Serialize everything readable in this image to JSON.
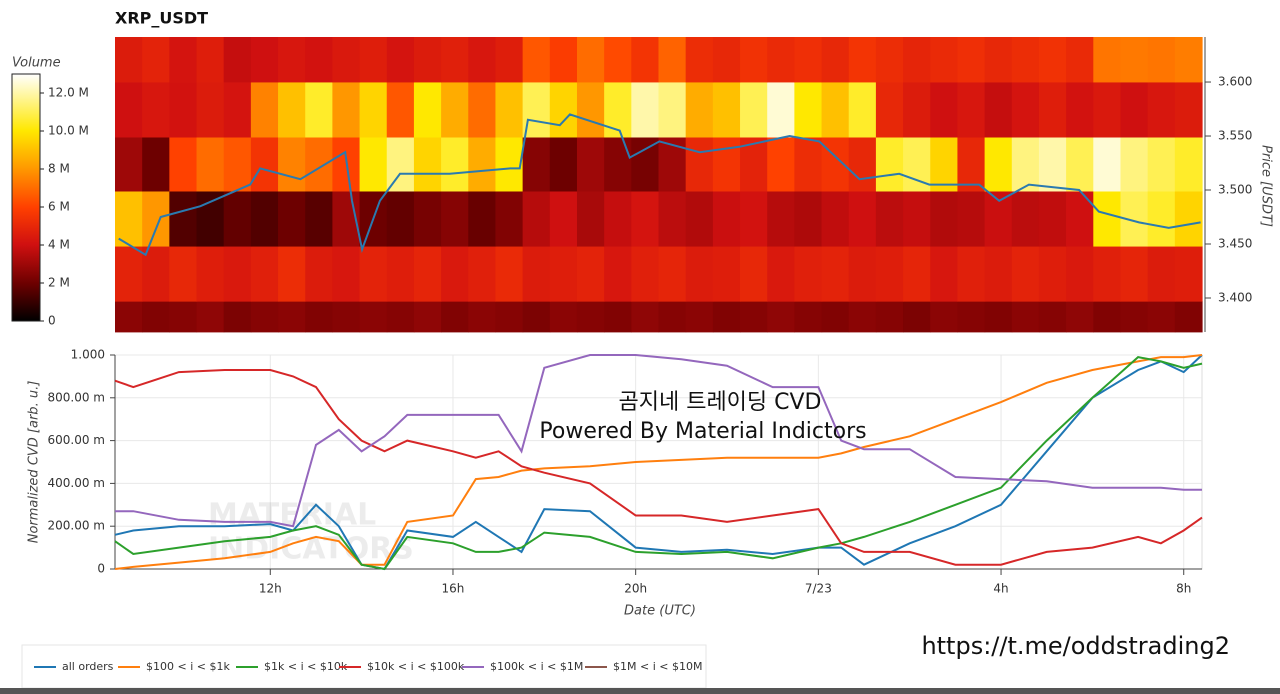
{
  "chart_data": [
    {
      "type": "heatmap",
      "title": "XRP_USDT",
      "colorbar_label": "Volume",
      "y_label": "Price [USDT]",
      "xlim": [
        8.6,
        32.4
      ],
      "ylim": [
        3.3685,
        3.6417
      ],
      "yticks": [
        {
          "value": 3.4,
          "label": "3.400"
        },
        {
          "value": 3.45,
          "label": "3.450"
        },
        {
          "value": 3.5,
          "label": "3.500"
        },
        {
          "value": 3.55,
          "label": "3.550"
        },
        {
          "value": 3.6,
          "label": "3.600"
        }
      ],
      "y_bins": [
        3.3685,
        3.397,
        3.448,
        3.499,
        3.549,
        3.6,
        3.6417
      ],
      "zlim": [
        0,
        13
      ],
      "zticks": [
        0,
        {
          "value": 2,
          "label": "2 M"
        },
        {
          "value": 4,
          "label": "4 M"
        },
        {
          "value": 6,
          "label": "6 M"
        },
        {
          "value": 8,
          "label": "8 M"
        },
        {
          "value": 10,
          "label": "10.0 M"
        },
        {
          "value": 12,
          "label": "12.0 M"
        }
      ],
      "z": [
        [
          2.6,
          2.4,
          2.5,
          2.7,
          2.3,
          2.5,
          2.6,
          2.4,
          2.5,
          2.6,
          2.5,
          2.7,
          2.4,
          2.6,
          2.5,
          2.3,
          2.6,
          2.5,
          2.4,
          2.7,
          2.5,
          2.6,
          2.4,
          2.5,
          2.7,
          2.5,
          2.4,
          2.6,
          2.5,
          2.3,
          2.6,
          2.5,
          2.4,
          2.6,
          2.5,
          2.7,
          2.4,
          2.5,
          2.6,
          2.4
        ],
        [
          4.8,
          4.5,
          5.0,
          4.6,
          4.4,
          4.7,
          5.2,
          4.5,
          4.3,
          4.8,
          4.6,
          4.9,
          4.4,
          4.7,
          5.1,
          4.5,
          4.6,
          4.8,
          4.3,
          4.7,
          4.9,
          4.5,
          4.6,
          5.0,
          4.4,
          4.7,
          4.8,
          4.5,
          4.6,
          4.9,
          4.3,
          4.7,
          4.5,
          4.8,
          4.6,
          4.4,
          4.7,
          4.9,
          4.5,
          4.6
        ],
        [
          9.0,
          8.0,
          1.5,
          1.2,
          1.8,
          1.5,
          2.0,
          1.6,
          3.0,
          2.0,
          1.8,
          2.2,
          2.5,
          1.9,
          2.4,
          3.5,
          4.0,
          3.2,
          3.8,
          4.2,
          3.6,
          3.4,
          3.9,
          4.1,
          3.5,
          3.3,
          3.7,
          4.0,
          3.6,
          3.8,
          3.4,
          3.5,
          3.9,
          3.6,
          3.7,
          4.0,
          10.0,
          11.0,
          10.5,
          9.5
        ],
        [
          3.0,
          2.0,
          6.0,
          7.0,
          6.5,
          5.5,
          7.5,
          7.0,
          6.0,
          10.0,
          11.5,
          9.5,
          10.5,
          8.5,
          10.0,
          2.5,
          2.0,
          3.0,
          2.5,
          2.2,
          3.0,
          5.0,
          5.5,
          4.8,
          6.0,
          5.2,
          5.5,
          5.0,
          10.5,
          11.0,
          9.5,
          5.0,
          10.0,
          11.5,
          12.0,
          11.0,
          12.5,
          11.5,
          11.0,
          10.5
        ],
        [
          4.0,
          4.3,
          4.1,
          4.5,
          4.2,
          7.5,
          9.0,
          10.5,
          8.0,
          9.5,
          6.5,
          10.0,
          8.5,
          7.0,
          9.0,
          11.0,
          9.5,
          8.0,
          10.5,
          12.0,
          11.5,
          8.5,
          9.0,
          11.0,
          12.5,
          10.0,
          9.0,
          10.5,
          5.0,
          4.5,
          4.0,
          4.3,
          3.8,
          4.2,
          4.6,
          4.1,
          4.4,
          4.0,
          4.3,
          4.5
        ],
        [
          4.5,
          4.8,
          4.2,
          4.6,
          3.8,
          4.0,
          4.3,
          4.1,
          4.4,
          4.6,
          4.2,
          4.5,
          4.7,
          4.3,
          4.6,
          6.5,
          5.8,
          7.0,
          6.2,
          5.5,
          6.8,
          5.2,
          5.0,
          5.4,
          5.1,
          5.3,
          5.0,
          5.5,
          5.2,
          4.9,
          5.1,
          5.3,
          5.0,
          5.2,
          5.4,
          5.1,
          7.2,
          7.3,
          7.2,
          7.4
        ]
      ],
      "price": {
        "color": "#2a7ab0",
        "x": [
          8.68,
          9.27,
          9.6,
          10.47,
          11.56,
          11.78,
          12.66,
          13.64,
          13.79,
          14.01,
          14.4,
          14.84,
          15.93,
          17.25,
          17.46,
          17.64,
          18.34,
          18.56,
          19.65,
          19.87,
          20.52,
          21.4,
          22.27,
          23.37,
          24.02,
          24.9,
          25.77,
          26.43,
          27.52,
          27.96,
          28.61,
          29.71,
          30.14,
          31.02,
          31.67,
          32.37
        ],
        "values": [
          3.455,
          3.44,
          3.475,
          3.485,
          3.505,
          3.52,
          3.51,
          3.535,
          3.49,
          3.445,
          3.49,
          3.515,
          3.515,
          3.52,
          3.52,
          3.565,
          3.56,
          3.57,
          3.555,
          3.53,
          3.545,
          3.535,
          3.54,
          3.55,
          3.545,
          3.51,
          3.515,
          3.505,
          3.505,
          3.49,
          3.505,
          3.5,
          3.48,
          3.47,
          3.465,
          3.47
        ]
      }
    },
    {
      "type": "line",
      "x_label": "Date (UTC)",
      "y_label": "Normalized CVD [arb. u.]",
      "annotations": [
        "곰지네 트레이딩 CVD",
        "Powered By Material Indictors"
      ],
      "watermark": [
        "MATERIAL",
        "INDICATORS"
      ],
      "url": "https://t.me/oddstrading2",
      "grid": true,
      "xlim": [
        8.6,
        32.4
      ],
      "xticks": [
        {
          "value": 12,
          "label": "12h"
        },
        {
          "value": 16,
          "label": "16h"
        },
        {
          "value": 20,
          "label": "20h"
        },
        {
          "value": 24,
          "label": "7/23"
        },
        {
          "value": 28,
          "label": "4h"
        },
        {
          "value": 32,
          "label": "8h"
        }
      ],
      "ylim": [
        0,
        1
      ],
      "yticks": [
        0,
        {
          "value": 0.2,
          "label": "200.00 m"
        },
        {
          "value": 0.4,
          "label": "400.00 m"
        },
        {
          "value": 0.6,
          "label": "600.00 m"
        },
        {
          "value": 0.8,
          "label": "800.00 m"
        },
        {
          "value": 1,
          "label": "1.000"
        }
      ],
      "x": [
        8.6,
        9,
        10,
        11,
        12,
        12.5,
        13,
        13.5,
        14,
        14.5,
        15,
        16,
        16.5,
        17,
        17.5,
        18,
        19,
        20,
        21,
        22,
        23,
        24,
        24.5,
        25,
        26,
        27,
        28,
        29,
        30,
        31,
        31.5,
        32,
        32.4
      ],
      "series": [
        {
          "name": "all orders",
          "color": "#1f77b4",
          "values": [
            0.16,
            0.18,
            0.2,
            0.2,
            0.21,
            0.18,
            0.3,
            0.2,
            0.02,
            0,
            0.18,
            0.15,
            0.22,
            0.15,
            0.08,
            0.28,
            0.27,
            0.1,
            0.08,
            0.09,
            0.07,
            0.1,
            0.1,
            0.02,
            0.12,
            0.2,
            0.3,
            0.55,
            0.8,
            0.93,
            0.97,
            0.92,
            1
          ]
        },
        {
          "name": "$100 < i < $1k",
          "color": "#ff7f0e",
          "values": [
            0,
            0.01,
            0.03,
            0.05,
            0.08,
            0.12,
            0.15,
            0.13,
            0.02,
            0.02,
            0.22,
            0.25,
            0.42,
            0.43,
            0.46,
            0.47,
            0.48,
            0.5,
            0.51,
            0.52,
            0.52,
            0.52,
            0.54,
            0.57,
            0.62,
            0.7,
            0.78,
            0.87,
            0.93,
            0.97,
            0.99,
            0.99,
            1
          ]
        },
        {
          "name": "$1k < i < $10k",
          "color": "#2ca02c",
          "values": [
            0.13,
            0.07,
            0.1,
            0.13,
            0.15,
            0.18,
            0.2,
            0.16,
            0.02,
            0,
            0.15,
            0.12,
            0.08,
            0.08,
            0.1,
            0.17,
            0.15,
            0.08,
            0.07,
            0.08,
            0.05,
            0.1,
            0.12,
            0.15,
            0.22,
            0.3,
            0.38,
            0.6,
            0.8,
            0.99,
            0.97,
            0.94,
            0.96
          ]
        },
        {
          "name": "$10k < i < $100k",
          "color": "#d62728",
          "values": [
            0.88,
            0.85,
            0.92,
            0.93,
            0.93,
            0.9,
            0.85,
            0.7,
            0.6,
            0.55,
            0.6,
            0.55,
            0.52,
            0.55,
            0.48,
            0.45,
            0.4,
            0.25,
            0.25,
            0.22,
            0.25,
            0.28,
            0.12,
            0.08,
            0.08,
            0.02,
            0.02,
            0.08,
            0.1,
            0.15,
            0.12,
            0.18,
            0.24
          ]
        },
        {
          "name": "$100k < i < $1M",
          "color": "#9467bd",
          "values": [
            0.27,
            0.27,
            0.23,
            0.22,
            0.22,
            0.2,
            0.58,
            0.65,
            0.55,
            0.62,
            0.72,
            0.72,
            0.72,
            0.72,
            0.55,
            0.94,
            1,
            1,
            0.98,
            0.95,
            0.85,
            0.85,
            0.6,
            0.56,
            0.56,
            0.43,
            0.42,
            0.41,
            0.38,
            0.38,
            0.38,
            0.37,
            0.37
          ]
        },
        {
          "name": "$1M < i < $10M",
          "color": "#8c564b",
          "values": [
            null,
            null,
            null,
            null,
            null,
            null,
            null,
            null,
            null,
            null,
            null,
            null,
            null,
            null,
            null,
            null,
            null,
            null,
            null,
            null,
            null,
            null,
            null,
            null,
            null,
            null,
            null,
            null,
            null,
            null,
            null,
            null,
            null
          ]
        }
      ]
    }
  ]
}
